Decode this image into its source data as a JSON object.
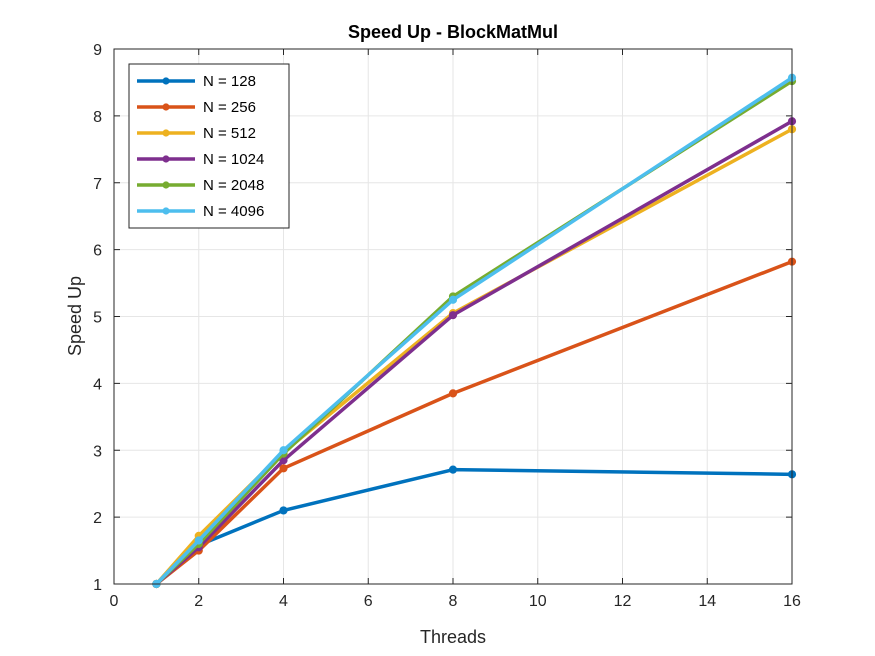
{
  "chart_data": {
    "type": "line",
    "title": "Speed Up - BlockMatMul",
    "xlabel": "Threads",
    "ylabel": "Speed Up",
    "xlim": [
      0,
      16
    ],
    "ylim": [
      1,
      9
    ],
    "xticks": [
      0,
      2,
      4,
      6,
      8,
      10,
      12,
      14,
      16
    ],
    "yticks": [
      1,
      2,
      3,
      4,
      5,
      6,
      7,
      8,
      9
    ],
    "grid": true,
    "legend_position": "top-left",
    "x": [
      1,
      2,
      4,
      8,
      16
    ],
    "series": [
      {
        "name": "N = 128",
        "color": "#0072BD",
        "values": [
          1,
          1.58,
          2.1,
          2.71,
          2.64
        ]
      },
      {
        "name": "N = 256",
        "color": "#D95319",
        "values": [
          1,
          1.5,
          2.73,
          3.85,
          5.82
        ]
      },
      {
        "name": "N = 512",
        "color": "#EDB120",
        "values": [
          1,
          1.72,
          2.97,
          5.05,
          7.8
        ]
      },
      {
        "name": "N = 1024",
        "color": "#7E2F8E",
        "values": [
          1,
          1.55,
          2.85,
          5.02,
          7.92
        ]
      },
      {
        "name": "N = 2048",
        "color": "#77AC30",
        "values": [
          1,
          1.6,
          2.95,
          5.3,
          8.52
        ]
      },
      {
        "name": "N = 4096",
        "color": "#4DBEEE",
        "values": [
          1,
          1.65,
          3.0,
          5.25,
          8.57
        ]
      }
    ]
  }
}
